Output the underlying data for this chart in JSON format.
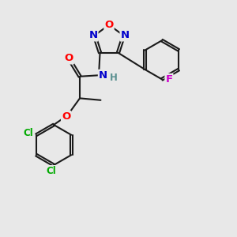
{
  "bg_color": "#e8e8e8",
  "bond_color": "#1a1a1a",
  "bond_width": 1.5,
  "dbo": 0.06,
  "atom_colors": {
    "O": "#ff0000",
    "N": "#0000cc",
    "F": "#cc00cc",
    "Cl": "#00aa00",
    "C": "#1a1a1a",
    "H": "#5a9090"
  },
  "fs": 8.5,
  "fig_size": [
    3.0,
    3.0
  ],
  "dpi": 100,
  "xlim": [
    0,
    10
  ],
  "ylim": [
    0,
    10
  ]
}
